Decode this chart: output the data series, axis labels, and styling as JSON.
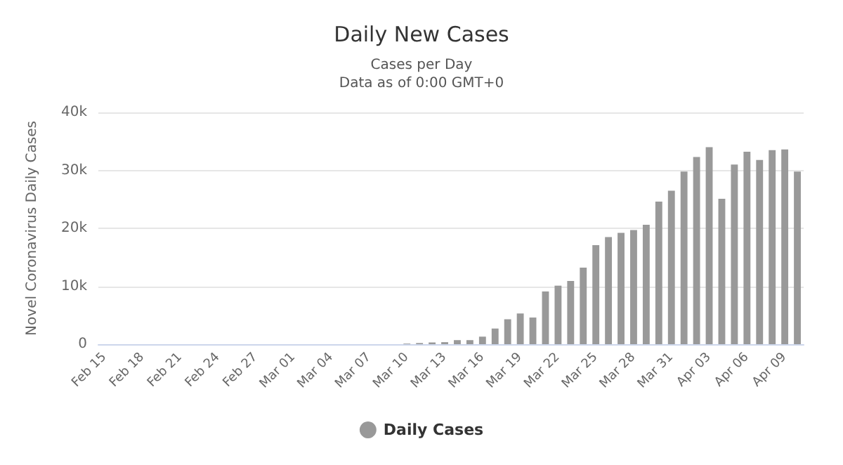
{
  "chart_data": {
    "type": "bar",
    "title": "Daily New Cases",
    "subtitle": "Cases per Day\nData as of 0:00 GMT+0",
    "ylabel": "Novel Coronavirus Daily Cases",
    "categories": [
      "Feb 15",
      null,
      null,
      "Feb 18",
      null,
      null,
      "Feb 21",
      null,
      null,
      "Feb 24",
      null,
      null,
      "Feb 27",
      null,
      null,
      "Mar 01",
      null,
      null,
      "Mar 04",
      null,
      null,
      "Mar 07",
      null,
      null,
      "Mar 10",
      null,
      null,
      "Mar 13",
      null,
      null,
      "Mar 16",
      null,
      null,
      "Mar 19",
      null,
      null,
      "Mar 22",
      null,
      null,
      "Mar 25",
      null,
      null,
      "Mar 28",
      null,
      null,
      "Mar 31",
      null,
      null,
      "Apr 03",
      null,
      null,
      "Apr 06",
      null,
      null,
      "Apr 09",
      null
    ],
    "series": [
      {
        "name": "Daily Cases",
        "color": "#999999",
        "values": [
          0,
          0,
          0,
          0,
          0,
          0,
          0,
          0,
          0,
          0,
          0,
          0,
          0,
          0,
          0,
          0,
          0,
          0,
          0,
          0,
          0,
          0,
          0,
          0,
          100,
          200,
          300,
          350,
          700,
          700,
          1300,
          2700,
          4300,
          5300,
          4600,
          9100,
          10100,
          10900,
          13200,
          17100,
          18500,
          19200,
          19700,
          20600,
          24600,
          26500,
          29800,
          32300,
          34000,
          25100,
          31000,
          33200,
          31800,
          33500,
          33600,
          29800
        ]
      }
    ],
    "ylim": [
      0,
      40000
    ],
    "yticks": [
      {
        "value": 0,
        "label": "0"
      },
      {
        "value": 10000,
        "label": "10k"
      },
      {
        "value": 20000,
        "label": "20k"
      },
      {
        "value": 30000,
        "label": "30k"
      },
      {
        "value": 40000,
        "label": "40k"
      }
    ],
    "grid": "y",
    "legend": "bottom"
  }
}
